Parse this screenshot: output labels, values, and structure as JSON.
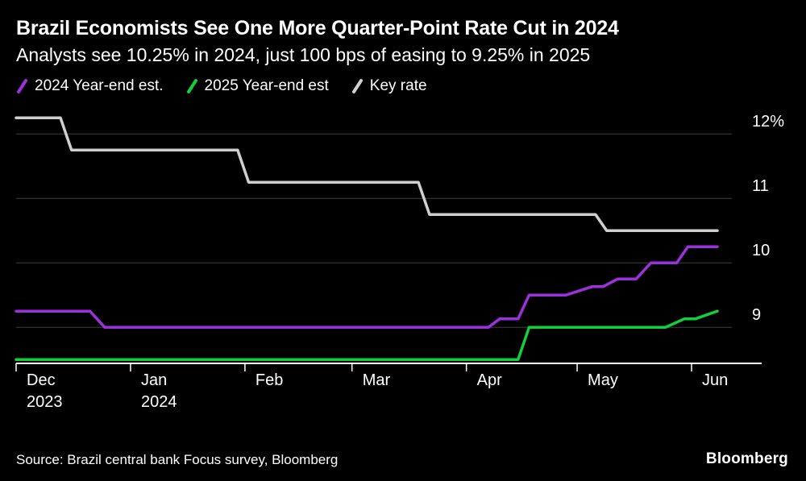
{
  "header": {
    "title": "Brazil Economists See One More Quarter-Point Rate Cut in 2024",
    "subtitle": "Analysts see 10.25% in 2024, just 100 bps of easing to 9.25% in 2025"
  },
  "legend": {
    "items": [
      {
        "label": "2024 Year-end est.",
        "color": "#9b30dd"
      },
      {
        "label": "2025 Year-end est",
        "color": "#13cf3a"
      },
      {
        "label": "Key rate",
        "color": "#cfcfcf"
      }
    ]
  },
  "chart_data": {
    "type": "line",
    "step": true,
    "title": "Brazil Economists See One More Quarter-Point Rate Cut in 2024",
    "subtitle": "Analysts see 10.25% in 2024, just 100 bps of easing to 9.25% in 2025",
    "x_unit": "days since Dec 1, 2023",
    "xlim": [
      0,
      202
    ],
    "ylim": [
      8.44,
      12.44
    ],
    "grid": true,
    "legend_position": "top",
    "grid_values": [
      9,
      10,
      11,
      12
    ],
    "y_ticks": [
      {
        "value": 12,
        "label": "12%"
      },
      {
        "value": 11,
        "label": "11"
      },
      {
        "value": 10,
        "label": "10"
      },
      {
        "value": 9,
        "label": "9"
      }
    ],
    "x_ticks": [
      {
        "day": 0,
        "line1": "Dec",
        "line2": "2023"
      },
      {
        "day": 31,
        "line1": "Jan",
        "line2": "2024"
      },
      {
        "day": 62,
        "line1": "Feb",
        "line2": ""
      },
      {
        "day": 91,
        "line1": "Mar",
        "line2": ""
      },
      {
        "day": 122,
        "line1": "Apr",
        "line2": ""
      },
      {
        "day": 152,
        "line1": "May",
        "line2": ""
      },
      {
        "day": 183,
        "line1": "Jun",
        "line2": ""
      }
    ],
    "series": [
      {
        "name": "Key rate",
        "color": "#cfcfcf",
        "points": [
          [
            0,
            12.25
          ],
          [
            12,
            12.25
          ],
          [
            15,
            11.75
          ],
          [
            60,
            11.75
          ],
          [
            63,
            11.25
          ],
          [
            109,
            11.25
          ],
          [
            112,
            10.75
          ],
          [
            157,
            10.75
          ],
          [
            160,
            10.5
          ],
          [
            190,
            10.5
          ]
        ]
      },
      {
        "name": "2025 Year-end est",
        "color": "#13cf3a",
        "points": [
          [
            0,
            8.5
          ],
          [
            136,
            8.5
          ],
          [
            139,
            9.0
          ],
          [
            176,
            9.0
          ],
          [
            181,
            9.13
          ],
          [
            184,
            9.13
          ],
          [
            190,
            9.25
          ]
        ]
      },
      {
        "name": "2024 Year-end est.",
        "color": "#9b30dd",
        "points": [
          [
            0,
            9.25
          ],
          [
            20,
            9.25
          ],
          [
            24,
            9.0
          ],
          [
            128,
            9.0
          ],
          [
            131,
            9.13
          ],
          [
            136,
            9.13
          ],
          [
            139,
            9.5
          ],
          [
            149,
            9.5
          ],
          [
            156,
            9.63
          ],
          [
            159,
            9.63
          ],
          [
            163,
            9.75
          ],
          [
            168,
            9.75
          ],
          [
            172,
            10.0
          ],
          [
            179,
            10.0
          ],
          [
            182,
            10.25
          ],
          [
            190,
            10.25
          ]
        ]
      }
    ]
  },
  "footer": {
    "source": "Source: Brazil central bank Focus survey, Bloomberg",
    "brand": "Bloomberg"
  },
  "colors": {
    "background": "#000000",
    "grid": "#3f3f3f",
    "axis": "#ffffff",
    "text": "#ffffff"
  }
}
